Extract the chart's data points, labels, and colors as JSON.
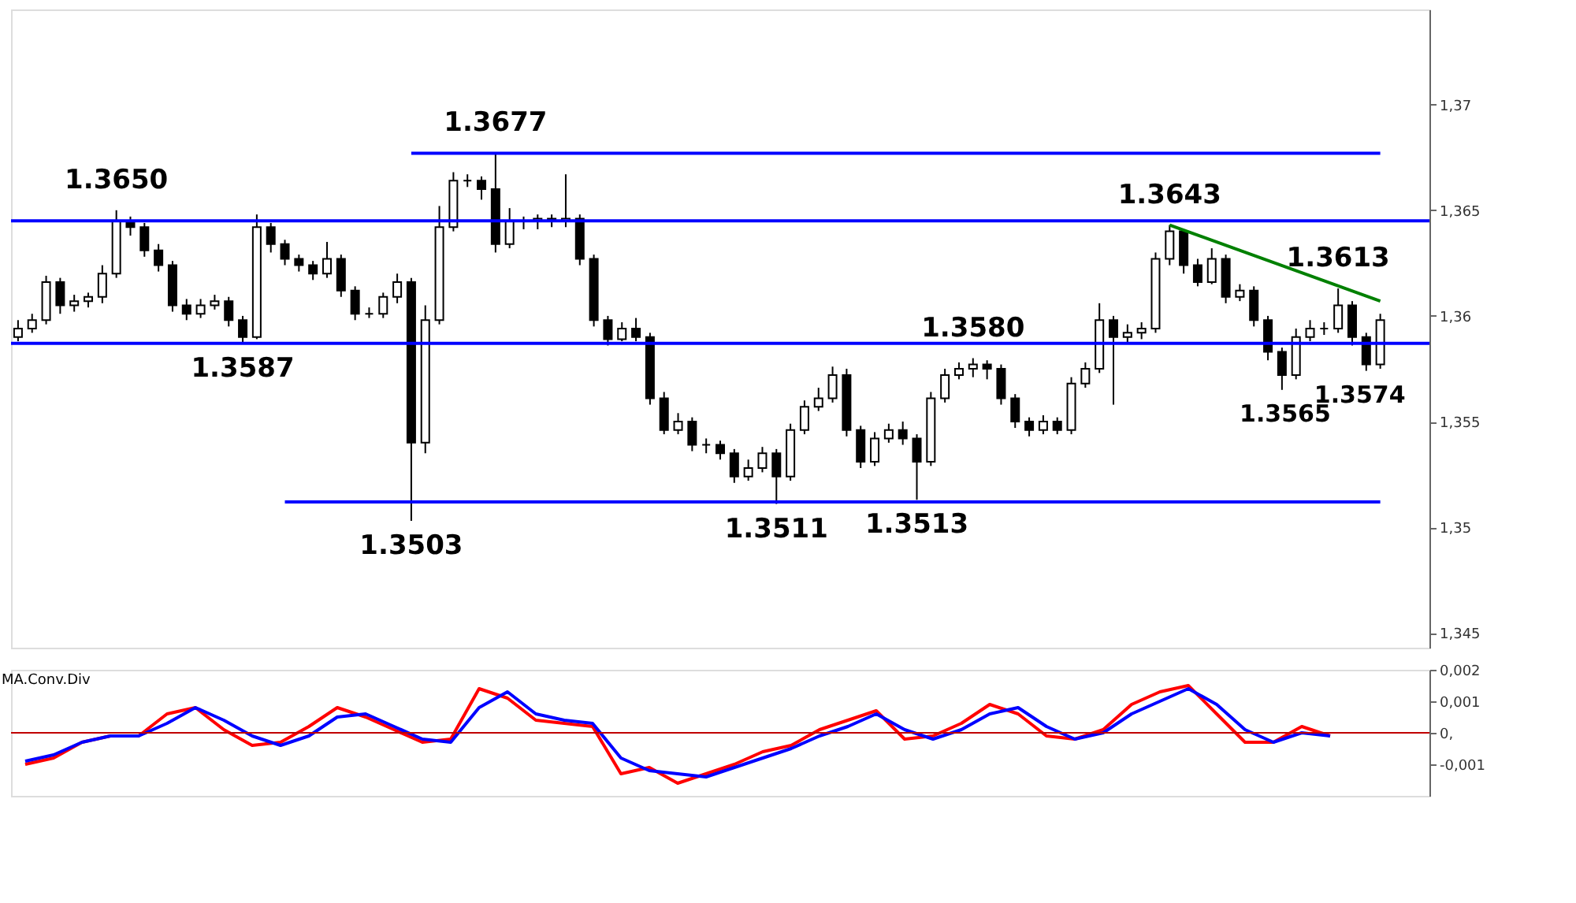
{
  "chart_data": [
    {
      "type": "candlestick",
      "categories": [
        null,
        null,
        null,
        null,
        null,
        null,
        null,
        null,
        null,
        null,
        null,
        null,
        null,
        null,
        null,
        null,
        null,
        null,
        null,
        null,
        null,
        null,
        null,
        null,
        null,
        null,
        null,
        null,
        null,
        null,
        null,
        null,
        null,
        null,
        null,
        null,
        null,
        null,
        null,
        null,
        null,
        null,
        null,
        null,
        null,
        null,
        null,
        null,
        null,
        null,
        null,
        null,
        null,
        null,
        null,
        null,
        null,
        null,
        null,
        null,
        null,
        null,
        null,
        null,
        null,
        null,
        null,
        null,
        null,
        null,
        null,
        null,
        null,
        null,
        null,
        null,
        null,
        null,
        null,
        null,
        null,
        null,
        null,
        null,
        null,
        null,
        null,
        null,
        null,
        null,
        null,
        null,
        null,
        null,
        null,
        null,
        null,
        null
      ],
      "ylim": [
        1.3443,
        1.3745
      ],
      "yticks": [
        {
          "value": 1.345,
          "label": "1,345"
        },
        {
          "value": 1.35,
          "label": "1,35"
        },
        {
          "value": 1.355,
          "label": "1,355"
        },
        {
          "value": 1.36,
          "label": "1,36"
        },
        {
          "value": 1.365,
          "label": "1,365"
        },
        {
          "value": 1.37,
          "label": "1,37"
        }
      ],
      "tick_labels": "y",
      "series": [
        {
          "type": "candlestick",
          "color": "#000000",
          "ohlc": [
            [
              1.359,
              1.3598,
              1.3588,
              1.3594
            ],
            [
              1.3594,
              1.3601,
              1.3592,
              1.3598
            ],
            [
              1.3598,
              1.3619,
              1.3596,
              1.3616
            ],
            [
              1.3616,
              1.3618,
              1.3601,
              1.3605
            ],
            [
              1.3605,
              1.361,
              1.3602,
              1.3607
            ],
            [
              1.3607,
              1.3611,
              1.3604,
              1.3609
            ],
            [
              1.3609,
              1.3624,
              1.3606,
              1.362
            ],
            [
              1.362,
              1.365,
              1.3618,
              1.3645
            ],
            [
              1.3645,
              1.3647,
              1.3638,
              1.3642
            ],
            [
              1.3642,
              1.3644,
              1.3628,
              1.3631
            ],
            [
              1.3631,
              1.3634,
              1.3621,
              1.3624
            ],
            [
              1.3624,
              1.3626,
              1.3602,
              1.3605
            ],
            [
              1.3605,
              1.3608,
              1.3598,
              1.3601
            ],
            [
              1.3601,
              1.3608,
              1.3599,
              1.3605
            ],
            [
              1.3605,
              1.361,
              1.3603,
              1.3607
            ],
            [
              1.3607,
              1.3609,
              1.3595,
              1.3598
            ],
            [
              1.3598,
              1.36,
              1.3587,
              1.359
            ],
            [
              1.359,
              1.3648,
              1.3589,
              1.3642
            ],
            [
              1.3642,
              1.3644,
              1.363,
              1.3634
            ],
            [
              1.3634,
              1.3636,
              1.3624,
              1.3627
            ],
            [
              1.3627,
              1.3629,
              1.3621,
              1.3624
            ],
            [
              1.3624,
              1.3626,
              1.3617,
              1.362
            ],
            [
              1.362,
              1.3635,
              1.3618,
              1.3627
            ],
            [
              1.3627,
              1.3629,
              1.3609,
              1.3612
            ],
            [
              1.3612,
              1.3614,
              1.3598,
              1.3601
            ],
            [
              1.3601,
              1.3604,
              1.3599,
              1.3601
            ],
            [
              1.3601,
              1.3611,
              1.3599,
              1.3609
            ],
            [
              1.3609,
              1.362,
              1.3606,
              1.3616
            ],
            [
              1.3616,
              1.3618,
              1.3503,
              1.354
            ],
            [
              1.354,
              1.3605,
              1.3535,
              1.3598
            ],
            [
              1.3598,
              1.3652,
              1.3596,
              1.3642
            ],
            [
              1.3642,
              1.3668,
              1.364,
              1.3664
            ],
            [
              1.3664,
              1.3667,
              1.3661,
              1.3664
            ],
            [
              1.3664,
              1.3666,
              1.3655,
              1.366
            ],
            [
              1.366,
              1.3677,
              1.363,
              1.3634
            ],
            [
              1.3634,
              1.3651,
              1.3632,
              1.3645
            ],
            [
              1.3645,
              1.3647,
              1.3641,
              1.3645
            ],
            [
              1.3645,
              1.3648,
              1.3641,
              1.3646
            ],
            [
              1.3646,
              1.3648,
              1.3642,
              1.3645
            ],
            [
              1.3645,
              1.3667,
              1.3642,
              1.3646
            ],
            [
              1.3646,
              1.3648,
              1.3624,
              1.3627
            ],
            [
              1.3627,
              1.3629,
              1.3595,
              1.3598
            ],
            [
              1.3598,
              1.36,
              1.3586,
              1.3589
            ],
            [
              1.3589,
              1.3597,
              1.3588,
              1.3594
            ],
            [
              1.3594,
              1.3599,
              1.3588,
              1.359
            ],
            [
              1.359,
              1.3592,
              1.3558,
              1.3561
            ],
            [
              1.3561,
              1.3564,
              1.3544,
              1.3546
            ],
            [
              1.3546,
              1.3554,
              1.3544,
              1.355
            ],
            [
              1.355,
              1.3552,
              1.3536,
              1.3539
            ],
            [
              1.3539,
              1.3542,
              1.3535,
              1.3539
            ],
            [
              1.3539,
              1.3541,
              1.3532,
              1.3535
            ],
            [
              1.3535,
              1.3537,
              1.3521,
              1.3524
            ],
            [
              1.3524,
              1.3532,
              1.3522,
              1.3528
            ],
            [
              1.3528,
              1.3538,
              1.3526,
              1.3535
            ],
            [
              1.3535,
              1.3537,
              1.3511,
              1.3524
            ],
            [
              1.3524,
              1.3549,
              1.3522,
              1.3546
            ],
            [
              1.3546,
              1.356,
              1.3544,
              1.3557
            ],
            [
              1.3557,
              1.3566,
              1.3555,
              1.3561
            ],
            [
              1.3561,
              1.3576,
              1.3559,
              1.3572
            ],
            [
              1.3572,
              1.3575,
              1.3543,
              1.3546
            ],
            [
              1.3546,
              1.3548,
              1.3528,
              1.3531
            ],
            [
              1.3531,
              1.3545,
              1.3529,
              1.3542
            ],
            [
              1.3542,
              1.3549,
              1.354,
              1.3546
            ],
            [
              1.3546,
              1.355,
              1.3539,
              1.3542
            ],
            [
              1.3542,
              1.3544,
              1.3513,
              1.3531
            ],
            [
              1.3531,
              1.3564,
              1.3529,
              1.3561
            ],
            [
              1.3561,
              1.3575,
              1.3559,
              1.3572
            ],
            [
              1.3572,
              1.3578,
              1.357,
              1.3575
            ],
            [
              1.3575,
              1.358,
              1.3571,
              1.3577
            ],
            [
              1.3577,
              1.3579,
              1.357,
              1.3575
            ],
            [
              1.3575,
              1.3577,
              1.3558,
              1.3561
            ],
            [
              1.3561,
              1.3563,
              1.3547,
              1.355
            ],
            [
              1.355,
              1.3552,
              1.3543,
              1.3546
            ],
            [
              1.3546,
              1.3553,
              1.3544,
              1.355
            ],
            [
              1.355,
              1.3552,
              1.3544,
              1.3546
            ],
            [
              1.3546,
              1.3571,
              1.3544,
              1.3568
            ],
            [
              1.3568,
              1.3578,
              1.3566,
              1.3575
            ],
            [
              1.3575,
              1.3606,
              1.3573,
              1.3598
            ],
            [
              1.3598,
              1.36,
              1.3558,
              1.359
            ],
            [
              1.359,
              1.3596,
              1.3587,
              1.3592
            ],
            [
              1.3592,
              1.3597,
              1.3589,
              1.3594
            ],
            [
              1.3594,
              1.363,
              1.3592,
              1.3627
            ],
            [
              1.3627,
              1.3643,
              1.3624,
              1.364
            ],
            [
              1.364,
              1.3641,
              1.362,
              1.3624
            ],
            [
              1.3624,
              1.3627,
              1.3614,
              1.3616
            ],
            [
              1.3616,
              1.3632,
              1.3615,
              1.3627
            ],
            [
              1.3627,
              1.3629,
              1.3606,
              1.3609
            ],
            [
              1.3609,
              1.3615,
              1.3607,
              1.3612
            ],
            [
              1.3612,
              1.3614,
              1.3595,
              1.3598
            ],
            [
              1.3598,
              1.36,
              1.3579,
              1.3583
            ],
            [
              1.3583,
              1.3585,
              1.3565,
              1.3572
            ],
            [
              1.3572,
              1.3594,
              1.357,
              1.359
            ],
            [
              1.359,
              1.3598,
              1.3588,
              1.3594
            ],
            [
              1.3594,
              1.3597,
              1.3591,
              1.3594
            ],
            [
              1.3594,
              1.3613,
              1.3592,
              1.3605
            ],
            [
              1.3605,
              1.3607,
              1.3586,
              1.359
            ],
            [
              1.359,
              1.3592,
              1.3574,
              1.3577
            ],
            [
              1.3577,
              1.3601,
              1.3575,
              1.3598
            ]
          ]
        },
        {
          "type": "line",
          "color": "#0000ff",
          "values": [
            null,
            null,
            null,
            null,
            null,
            null,
            null,
            null,
            null,
            null,
            null,
            null,
            null,
            null,
            null,
            null,
            null,
            null,
            null,
            null,
            null,
            null,
            null,
            null,
            null,
            null,
            null,
            null,
            1.3677,
            null,
            null,
            null,
            null,
            null,
            null,
            null,
            null,
            null,
            null,
            null,
            null,
            null,
            null,
            null,
            null,
            null,
            null,
            null,
            null,
            null,
            null,
            null,
            null,
            null,
            null,
            null,
            null,
            null,
            null,
            null,
            null,
            null,
            null,
            null,
            null,
            null,
            null,
            null,
            null,
            null,
            null,
            null,
            null,
            null,
            null,
            null,
            null,
            null,
            null,
            null,
            null,
            null,
            null,
            null,
            null,
            null,
            null,
            null,
            null,
            null,
            null,
            null,
            null,
            null,
            null,
            null,
            null,
            1.3677
          ]
        },
        {
          "type": "line",
          "color": "#0000ff",
          "values": [
            null,
            null,
            null,
            null,
            null,
            null,
            null,
            null,
            null,
            null,
            null,
            null,
            null,
            null,
            null,
            null,
            null,
            null,
            null,
            1.3512,
            null,
            null,
            null,
            null,
            null,
            null,
            null,
            null,
            null,
            null,
            null,
            null,
            null,
            null,
            null,
            null,
            null,
            null,
            null,
            null,
            null,
            null,
            null,
            null,
            null,
            null,
            null,
            null,
            null,
            null,
            null,
            null,
            null,
            null,
            null,
            null,
            null,
            null,
            null,
            null,
            null,
            null,
            null,
            null,
            null,
            null,
            null,
            null,
            null,
            null,
            null,
            null,
            null,
            null,
            null,
            null,
            null,
            null,
            null,
            null,
            null,
            null,
            null,
            null,
            null,
            null,
            null,
            null,
            null,
            null,
            null,
            null,
            null,
            null,
            null,
            null,
            null,
            1.3512
          ]
        },
        {
          "type": "line",
          "color": "#008000",
          "values": [
            null,
            null,
            null,
            null,
            null,
            null,
            null,
            null,
            null,
            null,
            null,
            null,
            null,
            null,
            null,
            null,
            null,
            null,
            null,
            null,
            null,
            null,
            null,
            null,
            null,
            null,
            null,
            null,
            null,
            null,
            null,
            null,
            null,
            null,
            null,
            null,
            null,
            null,
            null,
            null,
            null,
            null,
            null,
            null,
            null,
            null,
            null,
            null,
            null,
            null,
            null,
            null,
            null,
            null,
            null,
            null,
            null,
            null,
            null,
            null,
            null,
            null,
            null,
            null,
            null,
            null,
            null,
            null,
            null,
            null,
            null,
            null,
            null,
            null,
            null,
            null,
            null,
            null,
            null,
            null,
            null,
            null,
            1.3643,
            null,
            null,
            null,
            null,
            null,
            null,
            null,
            null,
            null,
            null,
            null,
            null,
            null,
            null,
            1.3607
          ]
        }
      ],
      "ref_lines": [
        {
          "axis": "y",
          "value": 1.3645,
          "color": "#0000ff"
        },
        {
          "axis": "y",
          "value": 1.3587,
          "color": "#0000ff"
        }
      ],
      "annotations": [
        {
          "text": "1.3650",
          "y": 1.365
        },
        {
          "text": "1.3587",
          "y": 1.3587
        },
        {
          "text": "1.3503",
          "y": 1.3503
        },
        {
          "text": "1.3677",
          "y": 1.3677
        },
        {
          "text": "1.3511",
          "y": 1.3511
        },
        {
          "text": "1.3513",
          "y": 1.3513
        },
        {
          "text": "1.3580",
          "y": 1.358
        },
        {
          "text": "1.3643",
          "y": 1.3643
        },
        {
          "text": "1.3613",
          "y": 1.3613
        },
        {
          "text": "1.3565",
          "y": 1.3565
        },
        {
          "text": "1.3574",
          "y": 1.3574
        }
      ]
    },
    {
      "type": "line",
      "title": "MA.Conv.Div",
      "categories": [
        null,
        null,
        null,
        null,
        null,
        null,
        null,
        null,
        null,
        null,
        null,
        null,
        null,
        null,
        null,
        null,
        null,
        null,
        null,
        null,
        null,
        null,
        null,
        null,
        null,
        null,
        null,
        null,
        null,
        null,
        null,
        null,
        null,
        null,
        null,
        null,
        null,
        null,
        null,
        null,
        null,
        null,
        null,
        null,
        null,
        null,
        null
      ],
      "ylim": [
        -0.002,
        0.002
      ],
      "yticks": [
        {
          "value": -0.001,
          "label": "-0,001"
        },
        {
          "value": 0,
          "label": "0,"
        },
        {
          "value": 0.001,
          "label": "0,001"
        },
        {
          "value": 0.002,
          "label": "0,002"
        }
      ],
      "tick_labels": "y",
      "series": [
        {
          "color": "#ff0000",
          "values": [
            -0.001,
            -0.0008,
            -0.0003,
            -0.0001,
            -0.0001,
            0.0006,
            0.0008,
            0.0001,
            -0.0004,
            -0.0003,
            0.0002,
            0.0008,
            0.0005,
            0.0001,
            -0.0003,
            -0.0002,
            0.0014,
            0.0011,
            0.0004,
            0.0003,
            0.0002,
            -0.0013,
            -0.0011,
            -0.0016,
            -0.0013,
            -0.001,
            -0.0006,
            -0.0004,
            0.0001,
            0.0004,
            0.0007,
            -0.0002,
            -0.0001,
            0.0003,
            0.0009,
            0.0006,
            -0.0001,
            -0.0002,
            0.0001,
            0.0009,
            0.0013,
            0.0015,
            0.0006,
            -0.0003,
            -0.0003,
            0.0002,
            -0.0001
          ]
        },
        {
          "color": "#0000ff",
          "values": [
            -0.0009,
            -0.0007,
            -0.0003,
            -0.0001,
            -0.0001,
            0.0003,
            0.0008,
            0.0004,
            -0.0001,
            -0.0004,
            -0.0001,
            0.0005,
            0.0006,
            0.0002,
            -0.0002,
            -0.0003,
            0.0008,
            0.0013,
            0.0006,
            0.0004,
            0.0003,
            -0.0008,
            -0.0012,
            -0.0013,
            -0.0014,
            -0.0011,
            -0.0008,
            -0.0005,
            -0.0001,
            0.0002,
            0.0006,
            0.0001,
            -0.0002,
            0.0001,
            0.0006,
            0.0008,
            0.0002,
            -0.0002,
            0.0,
            0.0006,
            0.001,
            0.0014,
            0.0009,
            0.0001,
            -0.0003,
            0.0,
            -0.0001
          ]
        }
      ],
      "ref_lines": [
        {
          "axis": "y",
          "value": 0,
          "color": "#c00000"
        }
      ]
    }
  ]
}
